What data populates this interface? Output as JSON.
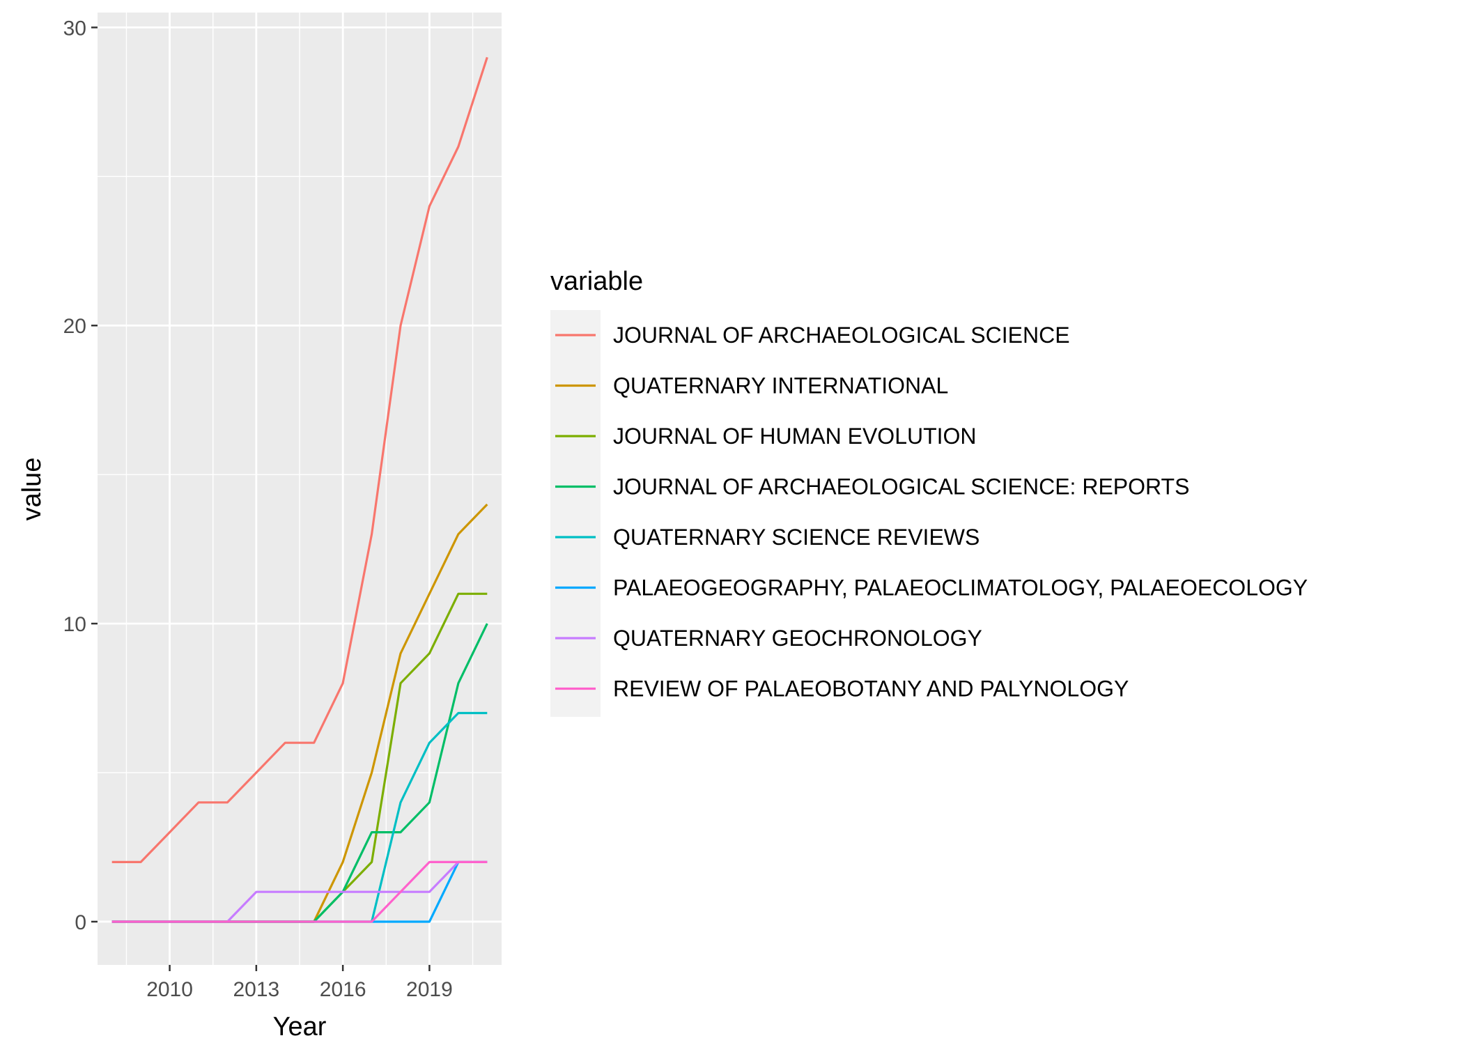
{
  "chart_data": {
    "type": "line",
    "xlabel": "Year",
    "ylabel": "value",
    "xlim": [
      2007.5,
      2021.5
    ],
    "ylim": [
      -1.45,
      30.5
    ],
    "x_ticks": [
      2010,
      2013,
      2016,
      2019
    ],
    "x_tick_labels": [
      "2010",
      "2013",
      "2016",
      "2019"
    ],
    "y_ticks": [
      0,
      10,
      20,
      30
    ],
    "y_tick_labels": [
      "0",
      "10",
      "20",
      "30"
    ],
    "grid": true,
    "legend": {
      "title": "variable",
      "position": "right"
    },
    "x": [
      2008,
      2009,
      2010,
      2011,
      2012,
      2013,
      2014,
      2015,
      2016,
      2017,
      2018,
      2019,
      2020,
      2021
    ],
    "series": [
      {
        "name": "JOURNAL OF ARCHAEOLOGICAL SCIENCE",
        "color": "#F8766D",
        "values": [
          2,
          2,
          3,
          4,
          4,
          5,
          6,
          6,
          8,
          13,
          20,
          24,
          26,
          29
        ]
      },
      {
        "name": "QUATERNARY INTERNATIONAL",
        "color": "#CD9600",
        "values": [
          0,
          0,
          0,
          0,
          0,
          0,
          0,
          0,
          2,
          5,
          9,
          11,
          13,
          14
        ]
      },
      {
        "name": "JOURNAL OF HUMAN EVOLUTION",
        "color": "#7CAE00",
        "values": [
          0,
          0,
          0,
          0,
          0,
          0,
          0,
          0,
          1,
          2,
          8,
          9,
          11,
          11
        ]
      },
      {
        "name": "JOURNAL OF ARCHAEOLOGICAL SCIENCE: REPORTS",
        "color": "#00BE67",
        "values": [
          0,
          0,
          0,
          0,
          0,
          0,
          0,
          0,
          1,
          3,
          3,
          4,
          8,
          10
        ]
      },
      {
        "name": "QUATERNARY SCIENCE REVIEWS",
        "color": "#00BFC4",
        "values": [
          0,
          0,
          0,
          0,
          0,
          0,
          0,
          0,
          0,
          0,
          4,
          6,
          7,
          7
        ]
      },
      {
        "name": "PALAEOGEOGRAPHY, PALAEOCLIMATOLOGY, PALAEOECOLOGY",
        "color": "#00A9FF",
        "values": [
          0,
          0,
          0,
          0,
          0,
          0,
          0,
          0,
          0,
          0,
          0,
          0,
          2,
          2
        ]
      },
      {
        "name": "QUATERNARY GEOCHRONOLOGY",
        "color": "#C77CFF",
        "values": [
          0,
          0,
          0,
          0,
          0,
          1,
          1,
          1,
          1,
          1,
          1,
          1,
          2,
          2
        ]
      },
      {
        "name": "REVIEW OF PALAEOBOTANY AND PALYNOLOGY",
        "color": "#FF61CC",
        "values": [
          0,
          0,
          0,
          0,
          0,
          0,
          0,
          0,
          0,
          0,
          1,
          2,
          2,
          2
        ]
      }
    ]
  }
}
